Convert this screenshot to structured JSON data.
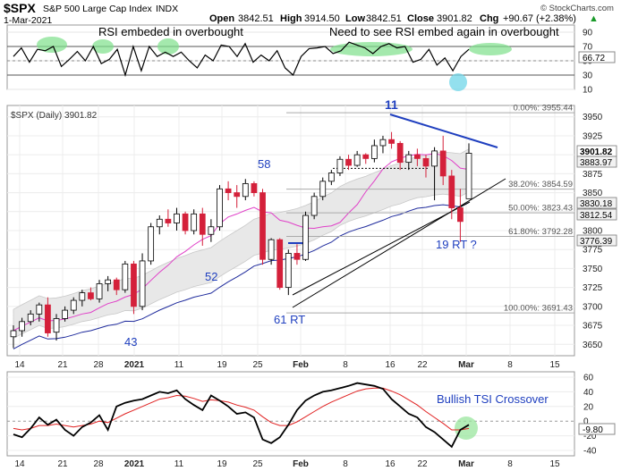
{
  "header": {
    "symbol": "$SPX",
    "name": "S&P 500 Large Cap Index",
    "exchange": "INDX",
    "date": "1-Mar-2021",
    "open_label": "Open",
    "open": "3842.51",
    "high_label": "High",
    "high": "3914.50",
    "low_label": "Low",
    "low": "3842.51",
    "close_label": "Close",
    "close": "3901.82",
    "chg_label": "Chg",
    "chg": "+90.67 (+2.38%)",
    "chg_arrow": "▲",
    "watermark": "© StockCharts.com"
  },
  "colors": {
    "up_candle": "#ffffff",
    "down_candle": "#d4203a",
    "ma_fast": "#e040c8",
    "ma_slow": "#1e2a9c",
    "envelope": "#e6e6e6",
    "trend_blue": "#1f3fbf",
    "highlight_green": "#7ee08a",
    "highlight_cyan": "#6fd6e8",
    "tsi_line": "#000000",
    "tsi_signal": "#e02020"
  },
  "chart_data": [
    {
      "type": "line",
      "panel": "rsi",
      "annotations": [
        "RSI embeded in overbought",
        "Need to see RSI embed again in overbought"
      ],
      "ylim": [
        10,
        100
      ],
      "y_ticks": [
        90,
        70,
        50,
        30,
        10
      ],
      "last_value": "66.72",
      "series": [
        {
          "values": [
            56,
            68,
            48,
            66,
            64,
            70,
            42,
            52,
            63,
            50,
            70,
            46,
            52,
            66,
            30,
            70,
            36,
            70,
            56,
            62,
            56,
            62,
            50,
            40,
            58,
            50,
            72,
            70,
            56,
            74,
            48,
            58,
            50,
            64,
            40,
            30,
            56,
            67,
            68,
            70,
            60,
            64,
            76,
            72,
            68,
            60,
            70,
            74,
            68,
            70,
            48,
            52,
            66,
            44,
            54,
            36,
            56,
            66
          ]
        }
      ]
    },
    {
      "type": "candlestick",
      "panel": "price",
      "legend": "$SPX (Daily) 3901.82",
      "ylim": [
        3635,
        3965
      ],
      "y_ticks": [
        3950,
        3925,
        3900,
        3875,
        3850,
        3825,
        3800,
        3775,
        3750,
        3725,
        3700,
        3675,
        3650
      ],
      "x_ticks": [
        "14",
        "21",
        "28",
        "2021",
        "11",
        "19",
        "25",
        "Feb",
        "8",
        "16",
        "22",
        "Mar",
        "8",
        "15"
      ],
      "fib_levels": [
        {
          "label": "0.00%: 3955.44",
          "value": 3955.44
        },
        {
          "label": "38.20%: 3854.59",
          "value": 3854.59
        },
        {
          "label": "50.00%: 3823.43",
          "value": 3823.43
        },
        {
          "label": "61.80%: 3792.28",
          "value": 3792.28
        },
        {
          "label": "100.00%: 3691.43",
          "value": 3691.43
        }
      ],
      "price_labels": [
        "3901.82",
        "3883.97",
        "3830.18",
        "3812.54",
        "3776.39"
      ],
      "annotations": [
        "11",
        "58",
        "52",
        "43",
        "61 RT",
        "19 RT ?"
      ],
      "ohlc": [
        [
          3660,
          3675,
          3645,
          3668
        ],
        [
          3668,
          3685,
          3660,
          3680
        ],
        [
          3680,
          3695,
          3675,
          3690
        ],
        [
          3690,
          3705,
          3680,
          3702
        ],
        [
          3702,
          3712,
          3660,
          3665
        ],
        [
          3666,
          3690,
          3655,
          3684
        ],
        [
          3684,
          3700,
          3680,
          3695
        ],
        [
          3695,
          3712,
          3690,
          3708
        ],
        [
          3708,
          3722,
          3700,
          3718
        ],
        [
          3718,
          3725,
          3708,
          3710
        ],
        [
          3710,
          3735,
          3705,
          3730
        ],
        [
          3730,
          3740,
          3720,
          3735
        ],
        [
          3735,
          3738,
          3715,
          3722
        ],
        [
          3722,
          3760,
          3718,
          3756
        ],
        [
          3756,
          3760,
          3690,
          3700
        ],
        [
          3700,
          3770,
          3695,
          3760
        ],
        [
          3760,
          3810,
          3755,
          3805
        ],
        [
          3805,
          3820,
          3795,
          3815
        ],
        [
          3815,
          3828,
          3805,
          3810
        ],
        [
          3810,
          3830,
          3800,
          3822
        ],
        [
          3822,
          3825,
          3795,
          3800
        ],
        [
          3800,
          3828,
          3795,
          3822
        ],
        [
          3822,
          3830,
          3780,
          3795
        ],
        [
          3795,
          3815,
          3785,
          3805
        ],
        [
          3805,
          3860,
          3800,
          3855
        ],
        [
          3855,
          3865,
          3840,
          3850
        ],
        [
          3850,
          3860,
          3830,
          3845
        ],
        [
          3845,
          3868,
          3840,
          3862
        ],
        [
          3862,
          3865,
          3845,
          3850
        ],
        [
          3850,
          3855,
          3755,
          3762
        ],
        [
          3762,
          3790,
          3755,
          3788
        ],
        [
          3788,
          3790,
          3722,
          3725
        ],
        [
          3725,
          3775,
          3715,
          3770
        ],
        [
          3770,
          3782,
          3755,
          3762
        ],
        [
          3762,
          3825,
          3760,
          3820
        ],
        [
          3820,
          3850,
          3815,
          3845
        ],
        [
          3845,
          3870,
          3840,
          3865
        ],
        [
          3865,
          3880,
          3860,
          3876
        ],
        [
          3876,
          3898,
          3872,
          3894
        ],
        [
          3894,
          3900,
          3880,
          3886
        ],
        [
          3886,
          3905,
          3884,
          3900
        ],
        [
          3900,
          3902,
          3888,
          3895
        ],
        [
          3895,
          3920,
          3890,
          3912
        ],
        [
          3912,
          3925,
          3902,
          3920
        ],
        [
          3920,
          3930,
          3908,
          3915
        ],
        [
          3915,
          3918,
          3880,
          3890
        ],
        [
          3890,
          3905,
          3880,
          3900
        ],
        [
          3900,
          3908,
          3885,
          3895
        ],
        [
          3895,
          3900,
          3870,
          3885
        ],
        [
          3885,
          3910,
          3840,
          3905
        ],
        [
          3905,
          3925,
          3860,
          3872
        ],
        [
          3872,
          3880,
          3815,
          3830
        ],
        [
          3830,
          3855,
          3785,
          3812
        ],
        [
          3842,
          3915,
          3842,
          3902
        ]
      ]
    },
    {
      "type": "line",
      "panel": "tsi",
      "annotation": "Bullish TSI Crossover",
      "ylim": [
        -40,
        60
      ],
      "y_ticks": [
        60,
        40,
        20,
        0,
        -20,
        -40
      ],
      "last_value": "-9.80",
      "series": [
        {
          "name": "TSI",
          "values": [
            -18,
            -22,
            -10,
            5,
            -5,
            2,
            -12,
            -20,
            -8,
            -2,
            8,
            -12,
            20,
            25,
            28,
            30,
            35,
            40,
            38,
            42,
            30,
            22,
            15,
            35,
            28,
            20,
            10,
            12,
            5,
            -25,
            -30,
            -22,
            -5,
            15,
            28,
            35,
            40,
            42,
            45,
            48,
            52,
            50,
            48,
            44,
            30,
            20,
            10,
            5,
            -8,
            -15,
            -25,
            -35,
            -12,
            -5
          ]
        },
        {
          "name": "Signal",
          "values": [
            -10,
            -12,
            -10,
            -6,
            -6,
            -4,
            -6,
            -8,
            -6,
            -4,
            0,
            -2,
            4,
            10,
            15,
            20,
            25,
            30,
            32,
            35,
            34,
            31,
            27,
            29,
            28,
            26,
            22,
            19,
            15,
            6,
            -2,
            -6,
            -6,
            -1,
            6,
            13,
            20,
            26,
            31,
            36,
            41,
            44,
            45,
            45,
            41,
            36,
            29,
            22,
            13,
            5,
            -3,
            -12,
            -12,
            -10
          ]
        }
      ]
    }
  ]
}
